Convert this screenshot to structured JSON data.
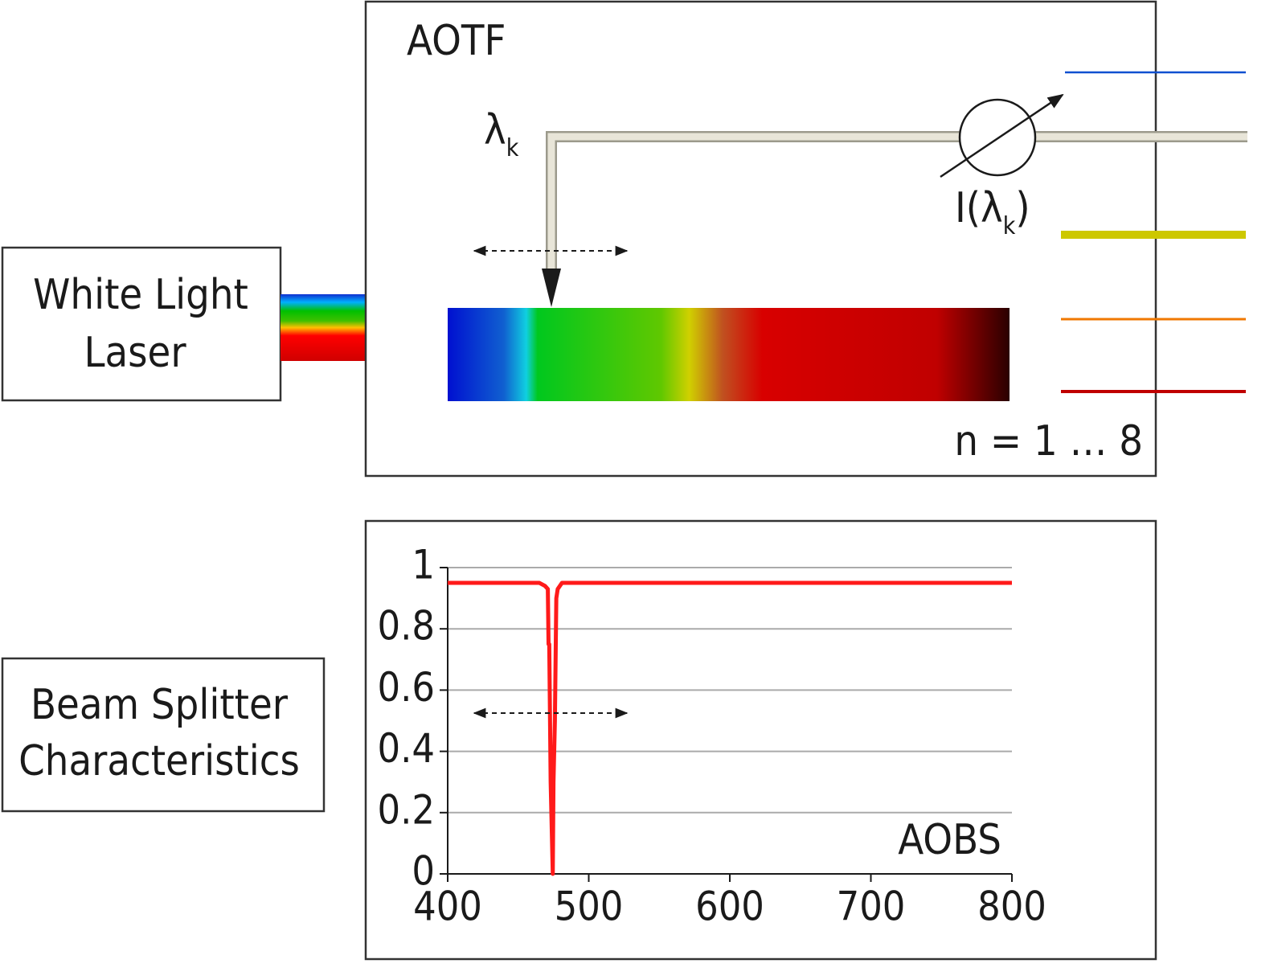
{
  "laser": {
    "lines": [
      "White Light",
      "Laser"
    ]
  },
  "aotf": {
    "title": "AOTF",
    "wavelength": {
      "symbol": "λ",
      "subscript": "k"
    },
    "intensity": {
      "prefix": "I(λ",
      "subscript": "k",
      "suffix": ")"
    },
    "channels": "n = 1 … 8"
  },
  "splitter": {
    "lines": [
      "Beam Splitter",
      "Characteristics"
    ]
  },
  "chart_data": {
    "type": "line",
    "annotation": "AOBS",
    "x": [
      400,
      465,
      469,
      471,
      471.5,
      472,
      473,
      474.5,
      475,
      476,
      477,
      478,
      481,
      800
    ],
    "series": [
      {
        "color": "#ff1a1a",
        "values": [
          0.95,
          0.95,
          0.94,
          0.93,
          0.75,
          0.75,
          0.3,
          0,
          0.3,
          0.5,
          0.9,
          0.93,
          0.95,
          0.95
        ]
      }
    ],
    "xlim": [
      400,
      800
    ],
    "ylim": [
      0,
      1
    ],
    "xticks": [
      400,
      500,
      600,
      700,
      800
    ],
    "yticks": [
      0,
      0.2,
      0.4,
      0.6,
      0.8,
      1
    ],
    "grid": true
  }
}
